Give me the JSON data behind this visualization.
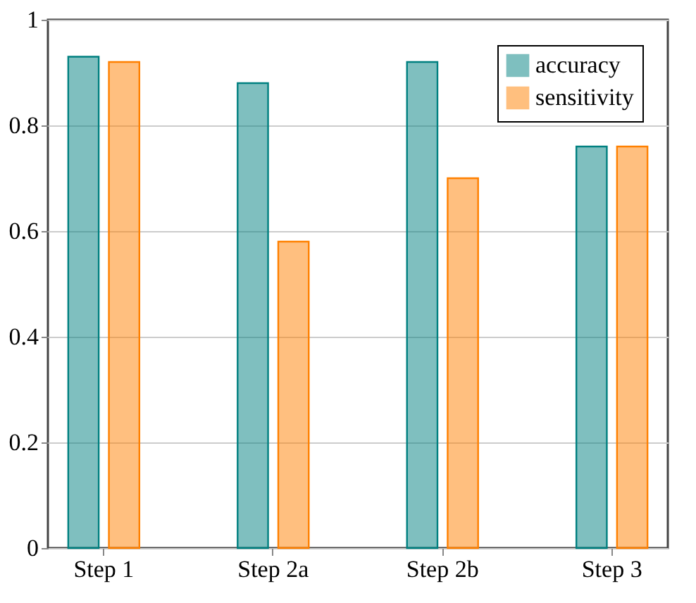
{
  "chart_data": {
    "type": "bar",
    "categories": [
      "Step 1",
      "Step 2a",
      "Step 2b",
      "Step 3"
    ],
    "series": [
      {
        "name": "accuracy",
        "color": "#008080",
        "values": [
          0.93,
          0.88,
          0.92,
          0.76
        ]
      },
      {
        "name": "sensitivity",
        "color": "#ff8000",
        "values": [
          0.92,
          0.58,
          0.7,
          0.76
        ]
      }
    ],
    "ylim": [
      0,
      1
    ],
    "yticks": [
      0,
      0.2,
      0.4,
      0.6,
      0.8,
      1
    ],
    "grid": "y",
    "legend": "top right"
  }
}
